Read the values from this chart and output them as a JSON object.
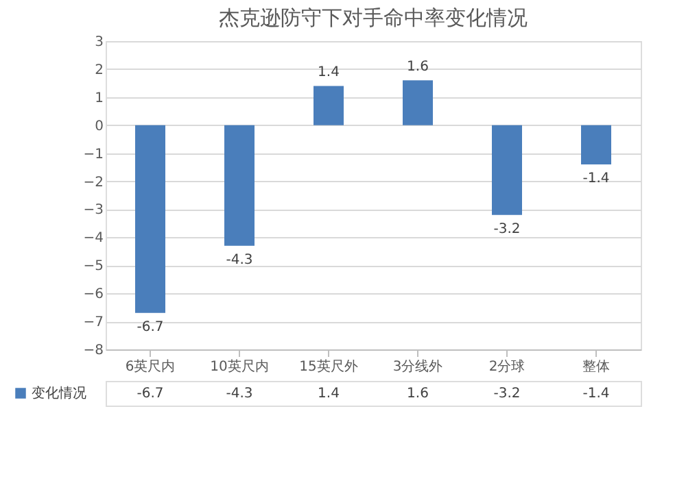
{
  "chart_data": {
    "type": "bar",
    "title": "杰克逊防守下对手命中率变化情况",
    "categories": [
      "6英尺内",
      "10英尺内",
      "15英尺外",
      "3分线外",
      "2分球",
      "整体"
    ],
    "series": [
      {
        "name": "变化情况",
        "color": "#4a7ebb",
        "values": [
          -6.7,
          -4.3,
          1.4,
          1.6,
          -3.2,
          -1.4
        ]
      }
    ],
    "ylim": [
      -8,
      3
    ],
    "yticks": [
      -8,
      -7,
      -6,
      -5,
      -4,
      -3,
      -2,
      -1,
      0,
      1,
      2,
      3
    ],
    "grid": "y",
    "data_labels": true,
    "legend": "bottom left",
    "value_labels": [
      "-6.7",
      "-4.3",
      "1.4",
      "1.6",
      "-3.2",
      "-1.4"
    ]
  }
}
